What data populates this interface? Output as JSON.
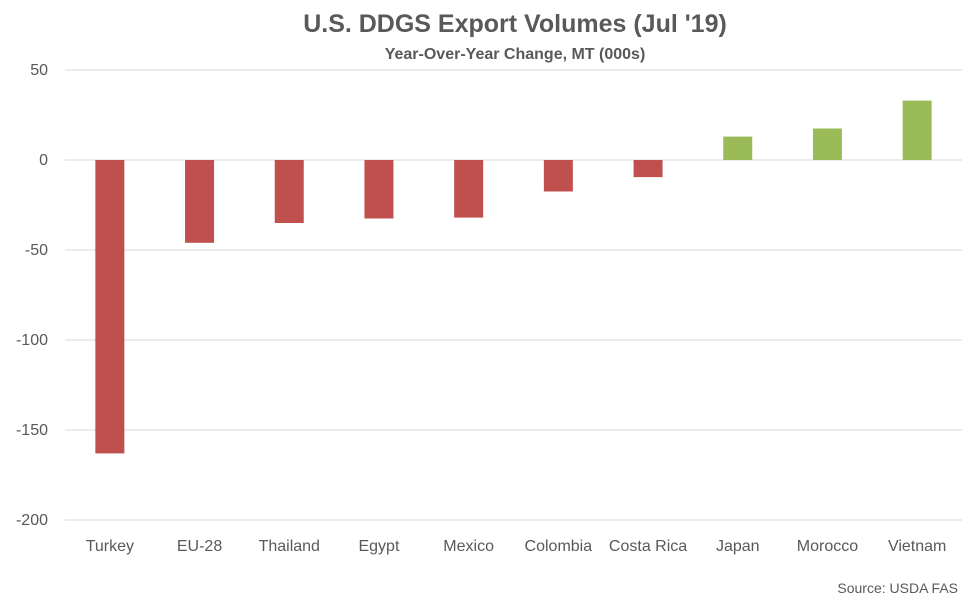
{
  "chart_data": {
    "type": "bar",
    "title": "U.S. DDGS Export Volumes (Jul '19)",
    "subtitle": "Year-Over-Year Change, MT (000s)",
    "categories": [
      "Turkey",
      "EU-28",
      "Thailand",
      "Egypt",
      "Mexico",
      "Colombia",
      "Costa Rica",
      "Japan",
      "Morocco",
      "Vietnam"
    ],
    "values": [
      -163,
      -46,
      -35,
      -32.5,
      -32,
      -17.5,
      -9.5,
      13,
      17.5,
      33
    ],
    "ylim": [
      -200,
      50
    ],
    "yticks": [
      50,
      0,
      -50,
      -100,
      -150,
      -200
    ],
    "grid": true,
    "legend": "none",
    "colors": {
      "negative": "#c0504d",
      "positive": "#9bbb59",
      "grid": "#d9d9d9",
      "text": "#595959"
    }
  },
  "source": "Source: USDA FAS"
}
